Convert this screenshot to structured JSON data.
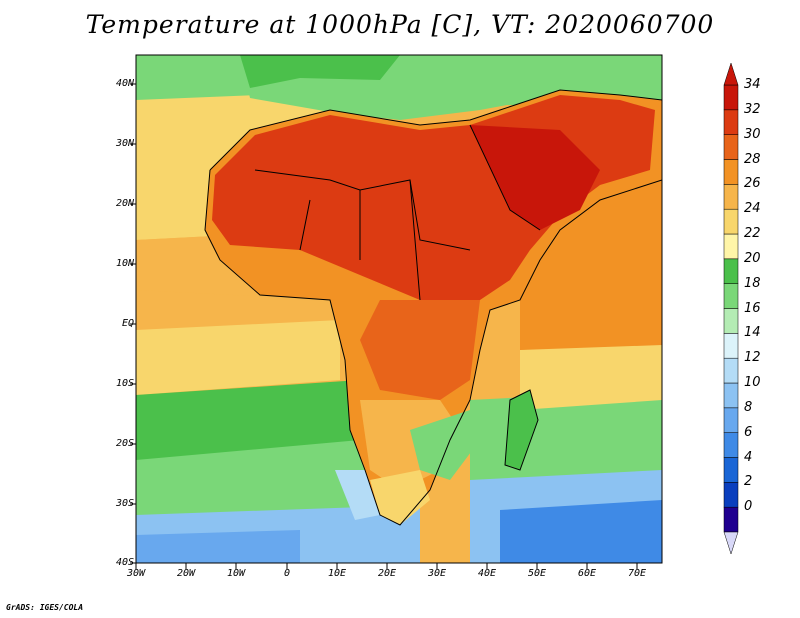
{
  "title": "Temperature at 1000hPa [C], VT: 2020060700",
  "credit": "GrADS: IGES/COLA",
  "lat_labels": [
    "40N",
    "30N",
    "20N",
    "10N",
    "EQ",
    "10S",
    "20S",
    "30S",
    "40S"
  ],
  "lon_labels": [
    "30W",
    "20W",
    "10W",
    "0",
    "10E",
    "20E",
    "30E",
    "40E",
    "50E",
    "60E",
    "70E"
  ],
  "colorbar": {
    "labels": [
      "34",
      "32",
      "30",
      "28",
      "26",
      "24",
      "22",
      "20",
      "18",
      "16",
      "14",
      "12",
      "10",
      "8",
      "6",
      "4",
      "2",
      "0"
    ],
    "colors": [
      "#200090",
      "#0a3fbe",
      "#1a66d6",
      "#3f8ae6",
      "#68a8ee",
      "#8cc2f2",
      "#b4dcf6",
      "#dcf3fa",
      "#b4ecb4",
      "#7ad778",
      "#4bc04b",
      "#fff5a8",
      "#f8d66c",
      "#f6b54b",
      "#f29224",
      "#e8641a",
      "#dc3b12",
      "#c8160a"
    ],
    "arrow_top": "#c8160a",
    "arrow_bottom": "#d8d8f8"
  }
}
